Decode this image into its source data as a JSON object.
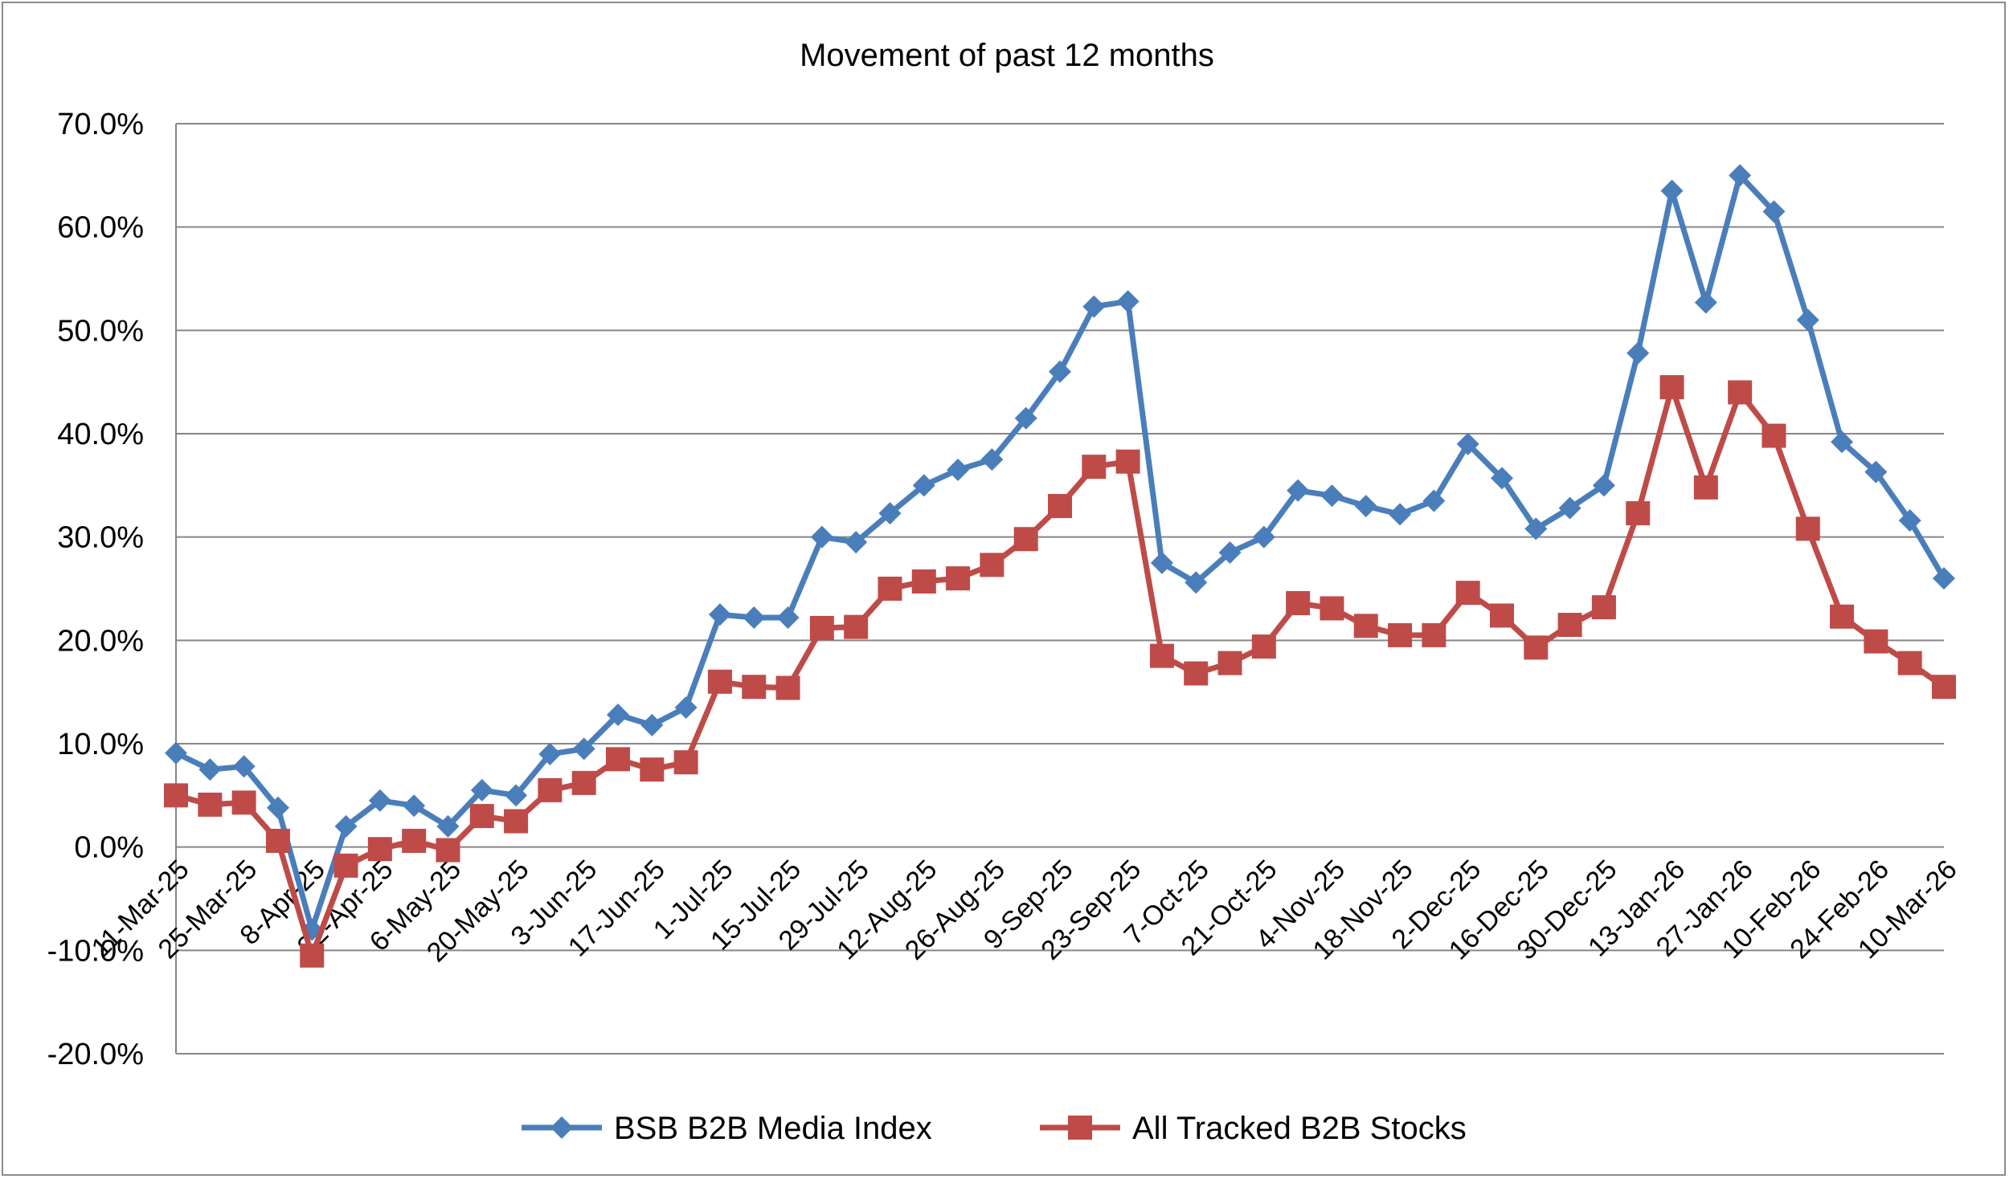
{
  "chart_data": {
    "type": "line",
    "title": "Movement of past 12 months",
    "xlabel": "",
    "ylabel": "",
    "ylim": [
      -20,
      70
    ],
    "y_ticks": [
      "70.0%",
      "60.0%",
      "50.0%",
      "40.0%",
      "30.0%",
      "20.0%",
      "10.0%",
      "0.0%",
      "-10.0%",
      "-20.0%"
    ],
    "y_tick_values": [
      70,
      60,
      50,
      40,
      30,
      20,
      10,
      0,
      -10,
      -20
    ],
    "x_tick_labels": [
      "11-Mar-25",
      "25-Mar-25",
      "8-Apr-25",
      "22-Apr-25",
      "6-May-25",
      "20-May-25",
      "3-Jun-25",
      "17-Jun-25",
      "1-Jul-25",
      "15-Jul-25",
      "29-Jul-25",
      "12-Aug-25",
      "26-Aug-25",
      "9-Sep-25",
      "23-Sep-25",
      "7-Oct-25",
      "21-Oct-25",
      "4-Nov-25",
      "18-Nov-25",
      "2-Dec-25",
      "16-Dec-25",
      "30-Dec-25",
      "13-Jan-26",
      "27-Jan-26",
      "10-Feb-26",
      "24-Feb-26",
      "10-Mar-26"
    ],
    "grid": true,
    "legend_position": "bottom",
    "series": [
      {
        "name": "BSB B2B Media Index",
        "color": "#4a7ebb",
        "marker": "diamond",
        "values": [
          9.1,
          7.5,
          7.8,
          3.8,
          -8.0,
          2.0,
          4.5,
          4.0,
          2.0,
          5.5,
          5.0,
          9.0,
          9.5,
          12.8,
          11.8,
          13.5,
          22.5,
          22.2,
          22.2,
          30.0,
          29.5,
          32.3,
          35.0,
          36.5,
          37.5,
          41.5,
          46.0,
          52.3,
          52.8,
          27.5,
          25.6,
          28.5,
          30.0,
          34.5,
          34.0,
          33.0,
          32.2,
          33.5,
          39.0,
          35.7,
          30.8,
          32.8,
          35.0,
          47.8,
          63.5,
          52.7,
          65.0,
          61.5,
          51.0,
          39.2,
          36.3,
          31.6,
          26.0
        ]
      },
      {
        "name": "All Tracked B2B Stocks",
        "color": "#be4b48",
        "marker": "square",
        "values": [
          5.0,
          4.1,
          4.3,
          0.6,
          -10.5,
          -1.8,
          -0.2,
          0.6,
          -0.3,
          3.0,
          2.5,
          5.5,
          6.2,
          8.5,
          7.5,
          8.2,
          16.0,
          15.5,
          15.4,
          21.2,
          21.3,
          25.0,
          25.7,
          26.0,
          27.3,
          29.8,
          33.0,
          36.8,
          37.3,
          18.5,
          16.8,
          17.8,
          19.4,
          23.6,
          23.1,
          21.4,
          20.5,
          20.5,
          24.6,
          22.4,
          19.3,
          21.5,
          23.2,
          32.3,
          44.5,
          34.8,
          44.0,
          39.8,
          30.8,
          22.3,
          19.9,
          17.8,
          15.5
        ]
      }
    ]
  }
}
